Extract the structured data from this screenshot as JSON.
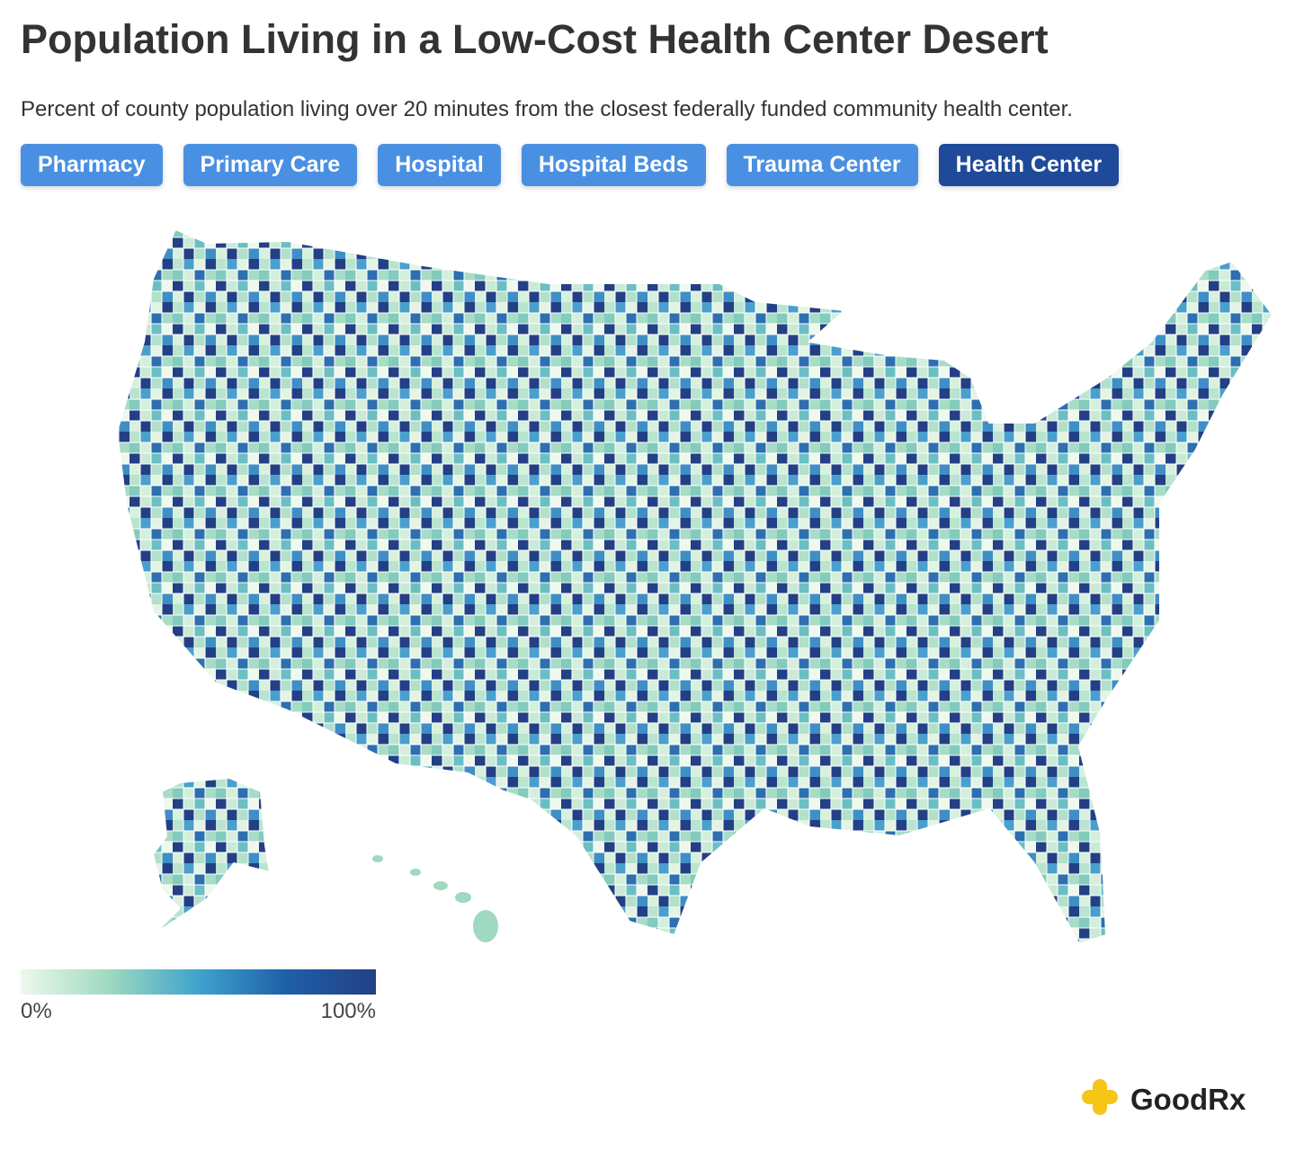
{
  "header": {
    "title": "Population Living in a Low-Cost Health Center Desert",
    "subtitle": "Percent of county population living over 20 minutes from the closest federally funded community health center."
  },
  "tabs": [
    {
      "label": "Pharmacy",
      "active": false
    },
    {
      "label": "Primary Care",
      "active": false
    },
    {
      "label": "Hospital",
      "active": false
    },
    {
      "label": "Hospital Beds",
      "active": false
    },
    {
      "label": "Trauma Center",
      "active": false
    },
    {
      "label": "Health Center",
      "active": true
    }
  ],
  "legend": {
    "min_label": "0%",
    "max_label": "100%",
    "colors": [
      "#eef8ec",
      "#9ed9c0",
      "#3fa3cc",
      "#1e5fa8",
      "#233f86"
    ]
  },
  "brand": "GoodRx"
}
